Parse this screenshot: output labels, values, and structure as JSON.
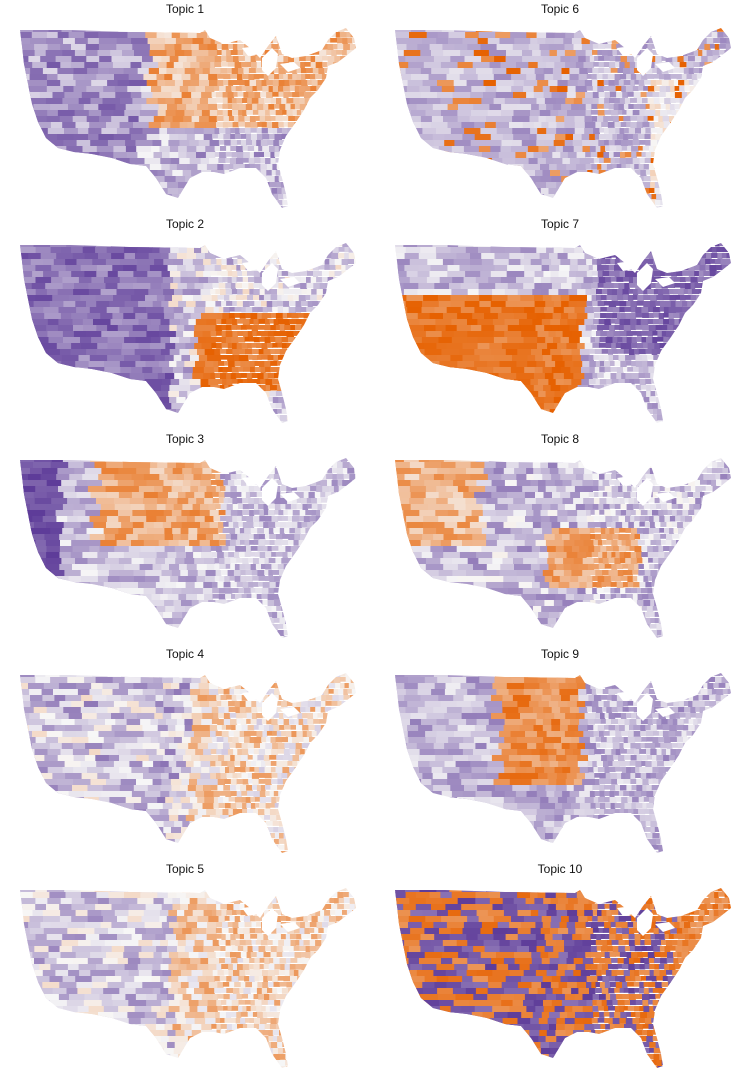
{
  "figure": {
    "colors": {
      "low": "#5e3c99",
      "mid": "#f7f7f7",
      "high": "#e66101"
    },
    "panels": [
      {
        "title": "Topic 1",
        "pattern": "north_central"
      },
      {
        "title": "Topic 2",
        "pattern": "southeast"
      },
      {
        "title": "Topic 3",
        "pattern": "plains_north"
      },
      {
        "title": "Topic 4",
        "pattern": "mixed_light"
      },
      {
        "title": "Topic 5",
        "pattern": "east_light"
      },
      {
        "title": "Topic 6",
        "pattern": "scattered_southeast"
      },
      {
        "title": "Topic 7",
        "pattern": "southwest"
      },
      {
        "title": "Topic 8",
        "pattern": "appalachia_west"
      },
      {
        "title": "Topic 9",
        "pattern": "great_plains"
      },
      {
        "title": "Topic 10",
        "pattern": "checker_strong"
      }
    ]
  }
}
